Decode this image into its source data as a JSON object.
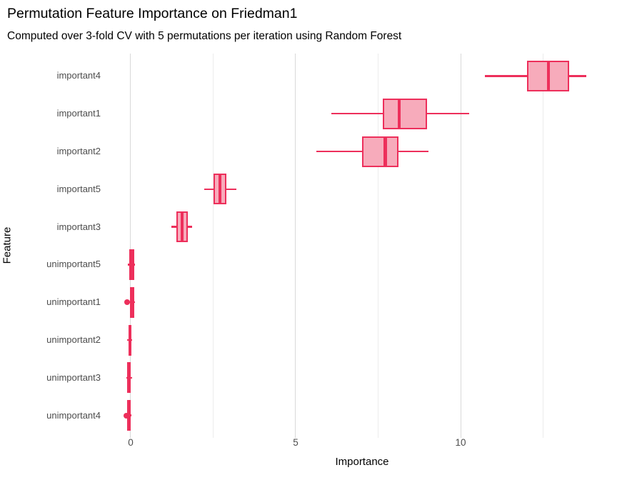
{
  "header": {
    "title": "Permutation Feature Importance on Friedman1",
    "subtitle": "Computed over 3-fold CV with 5 permutations per iteration using Random Forest"
  },
  "chart_data": {
    "type": "boxplot",
    "orientation": "horizontal",
    "title": "Permutation Feature Importance on Friedman1",
    "subtitle": "Computed over 3-fold CV with 5 permutations per iteration using Random Forest",
    "xlabel": "Importance",
    "ylabel": "Feature",
    "xlim": [
      -0.714,
      14.74
    ],
    "x_major_ticks": [
      0,
      5,
      10
    ],
    "x_minor_gridlines": [
      2.5,
      7.5,
      12.5
    ],
    "grid": "vertical-only",
    "legend": "none",
    "categories_top_to_bottom": [
      "important4",
      "important1",
      "important2",
      "important5",
      "important3",
      "unimportant5",
      "unimportant1",
      "unimportant2",
      "unimportant3",
      "unimportant4"
    ],
    "series": [
      {
        "feature": "important4",
        "whisker_low": 10.74,
        "q1": 12.01,
        "median": 12.66,
        "q3": 13.29,
        "whisker_high": 13.81,
        "outliers": []
      },
      {
        "feature": "important1",
        "whisker_low": 6.08,
        "q1": 7.64,
        "median": 8.14,
        "q3": 8.98,
        "whisker_high": 10.26,
        "outliers": []
      },
      {
        "feature": "important2",
        "whisker_low": 5.62,
        "q1": 7.01,
        "median": 7.72,
        "q3": 8.12,
        "whisker_high": 9.03,
        "outliers": []
      },
      {
        "feature": "important5",
        "whisker_low": 2.23,
        "q1": 2.51,
        "median": 2.71,
        "q3": 2.9,
        "whisker_high": 3.2,
        "outliers": []
      },
      {
        "feature": "important3",
        "whisker_low": 1.24,
        "q1": 1.39,
        "median": 1.56,
        "q3": 1.73,
        "whisker_high": 1.86,
        "outliers": []
      },
      {
        "feature": "unimportant5",
        "whisker_low": -0.09,
        "q1": -0.04,
        "median": 0.03,
        "q3": 0.11,
        "whisker_high": 0.14,
        "outliers": []
      },
      {
        "feature": "unimportant1",
        "whisker_low": -0.05,
        "q1": -0.02,
        "median": 0.03,
        "q3": 0.1,
        "whisker_high": 0.13,
        "outliers": [
          -0.1
        ]
      },
      {
        "feature": "unimportant2",
        "whisker_low": -0.11,
        "q1": -0.07,
        "median": -0.02,
        "q3": 0.02,
        "whisker_high": 0.05,
        "outliers": []
      },
      {
        "feature": "unimportant3",
        "whisker_low": -0.12,
        "q1": -0.11,
        "median": -0.05,
        "q3": -0.01,
        "whisker_high": 0.04,
        "outliers": []
      },
      {
        "feature": "unimportant4",
        "whisker_low": -0.13,
        "q1": -0.11,
        "median": -0.06,
        "q3": 0.0,
        "whisker_high": 0.02,
        "outliers": [
          -0.14
        ]
      }
    ],
    "colors": {
      "box_stroke": "#ED2F5B",
      "box_fill": "#F7ABBB",
      "grid_major": "#D9D9D9",
      "grid_minor": "#ECECEC",
      "tick_text": "#4D4D4D",
      "title_text": "#000000",
      "background": "#FFFFFF"
    }
  }
}
